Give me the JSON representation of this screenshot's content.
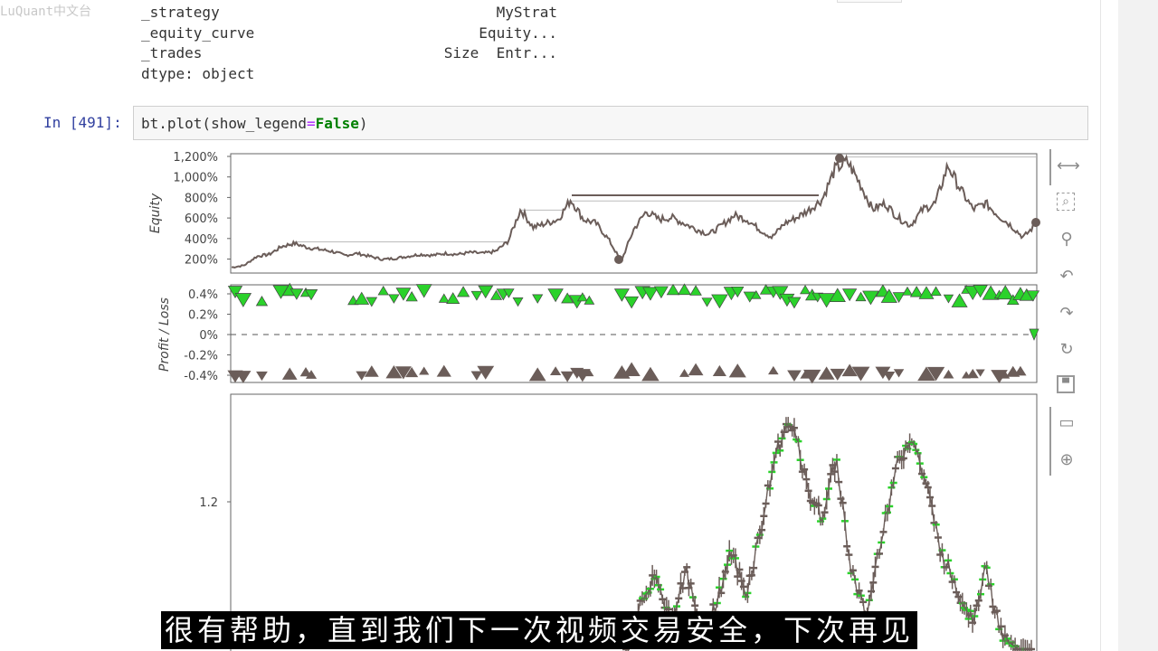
{
  "watermark": "LuQuant中文台",
  "output": {
    "rows": [
      {
        "key": "_strategy",
        "value": "MyStrat"
      },
      {
        "key": "_equity_curve",
        "value": "Equity..."
      },
      {
        "key": "_trades",
        "value": "Size  Entr..."
      }
    ],
    "dtype": "dtype: object"
  },
  "cell": {
    "prompt": "In [491]:",
    "code_fn": "bt.plot(show_legend",
    "code_op": "=",
    "code_kw": "False",
    "code_end": ")"
  },
  "chart_data": [
    {
      "type": "line",
      "ylabel": "Equity",
      "y_ticks": [
        "1,200%",
        "1,000%",
        "800%",
        "600%",
        "400%",
        "200%"
      ],
      "ylim": [
        50,
        1250
      ],
      "grid": false,
      "series": [
        {
          "color": "#6b5d59",
          "values": [
            120,
            140,
            230,
            250,
            330,
            360,
            320,
            300,
            280,
            240,
            260,
            230,
            200,
            210,
            230,
            250,
            240,
            260,
            250,
            270,
            260,
            280,
            380,
            700,
            520,
            560,
            600,
            800,
            600,
            560,
            400,
            180,
            500,
            680,
            600,
            620,
            560,
            500,
            450,
            540,
            640,
            600,
            500,
            420,
            560,
            620,
            700,
            800,
            1100,
            1180,
            960,
            700,
            760,
            620,
            540,
            700,
            760,
            1140,
            900,
            700,
            760,
            640,
            540,
            420,
            550
          ]
        }
      ],
      "annotations": [
        {
          "label": "peak",
          "value": 1180
        },
        {
          "label": "max-drawdown",
          "value": 180
        },
        {
          "label": "final",
          "value": 550
        }
      ]
    },
    {
      "type": "scatter",
      "ylabel": "Profit / Loss",
      "y_ticks": [
        "0.4%",
        "0.2%",
        "0%",
        "-0.2%",
        "-0.4%"
      ],
      "ylim": [
        -0.5,
        0.5
      ],
      "markers": {
        "win": "#2bd22b",
        "loss": "#6b5d59"
      }
    },
    {
      "type": "line",
      "y_ticks": [
        "1.2"
      ],
      "series": [
        {
          "color": "#6b5d59",
          "values": [
            1.02,
            1.08,
            1.11,
            1.06,
            1.12,
            1.04,
            1.08,
            1.14,
            1.09,
            1.17,
            1.26,
            1.3,
            1.22,
            1.18,
            1.25,
            1.12,
            1.06,
            1.16,
            1.24,
            1.28,
            1.22,
            1.14,
            1.1,
            1.06,
            1.12,
            1.04,
            1.02,
            0.96
          ]
        }
      ],
      "marker_colors": {
        "up": "#2bd22b",
        "down": "#6b5d59"
      }
    }
  ],
  "subtitle": "很有帮助，直到我们下一次视频交易安全，下次再见",
  "toolbar": {
    "icons": [
      "pan-icon",
      "box-zoom-icon",
      "wheel-zoom-icon",
      "undo-icon",
      "redo-icon",
      "reset-icon",
      "save-icon",
      "hover-icon",
      "crosshair-icon"
    ]
  }
}
